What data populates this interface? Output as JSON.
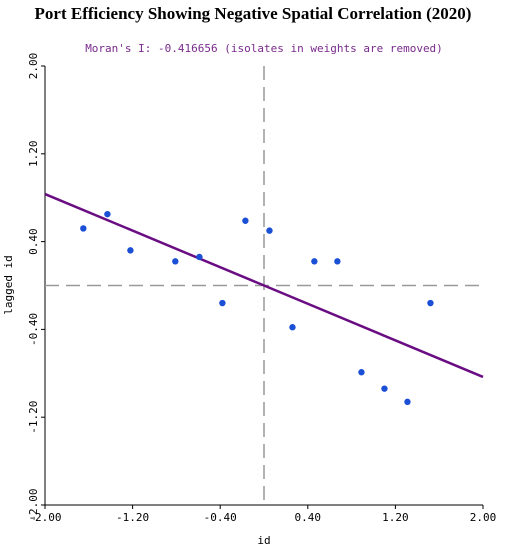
{
  "chart_data": {
    "type": "scatter",
    "title": "Port Efficiency Showing Negative Spatial Correlation (2020)",
    "subtitle": "Moran's I: -0.416656 (isolates in weights are removed)",
    "xlabel": "id",
    "ylabel": "lagged id",
    "xlim": [
      -2.0,
      2.0
    ],
    "ylim": [
      -2.0,
      2.0
    ],
    "xticks": [
      "-2.00",
      "-1.20",
      "-0.40",
      "0.40",
      "1.20",
      "2.00"
    ],
    "yticks": [
      "-2.00",
      "-1.20",
      "-0.40",
      "0.40",
      "1.20",
      "2.00"
    ],
    "points": [
      {
        "x": -1.65,
        "y": 0.52
      },
      {
        "x": -1.43,
        "y": 0.65
      },
      {
        "x": -1.22,
        "y": 0.32
      },
      {
        "x": -0.81,
        "y": 0.22
      },
      {
        "x": -0.59,
        "y": 0.26
      },
      {
        "x": -0.38,
        "y": -0.16
      },
      {
        "x": -0.17,
        "y": 0.59
      },
      {
        "x": 0.05,
        "y": 0.5
      },
      {
        "x": 0.26,
        "y": -0.38
      },
      {
        "x": 0.46,
        "y": 0.22
      },
      {
        "x": 0.67,
        "y": 0.22
      },
      {
        "x": 0.89,
        "y": -0.79
      },
      {
        "x": 1.1,
        "y": -0.94
      },
      {
        "x": 1.31,
        "y": -1.06
      },
      {
        "x": 1.52,
        "y": -0.16
      }
    ],
    "regression": {
      "slope": -0.416656,
      "intercept": 0.0
    },
    "dashed_lines": {
      "x": 0.0,
      "y": 0.0
    },
    "colors": {
      "points": "#1a4fd6",
      "regression": "#6a0d83",
      "subtitle": "#7a2a8c",
      "dashed": "#999999"
    },
    "grid": false
  }
}
